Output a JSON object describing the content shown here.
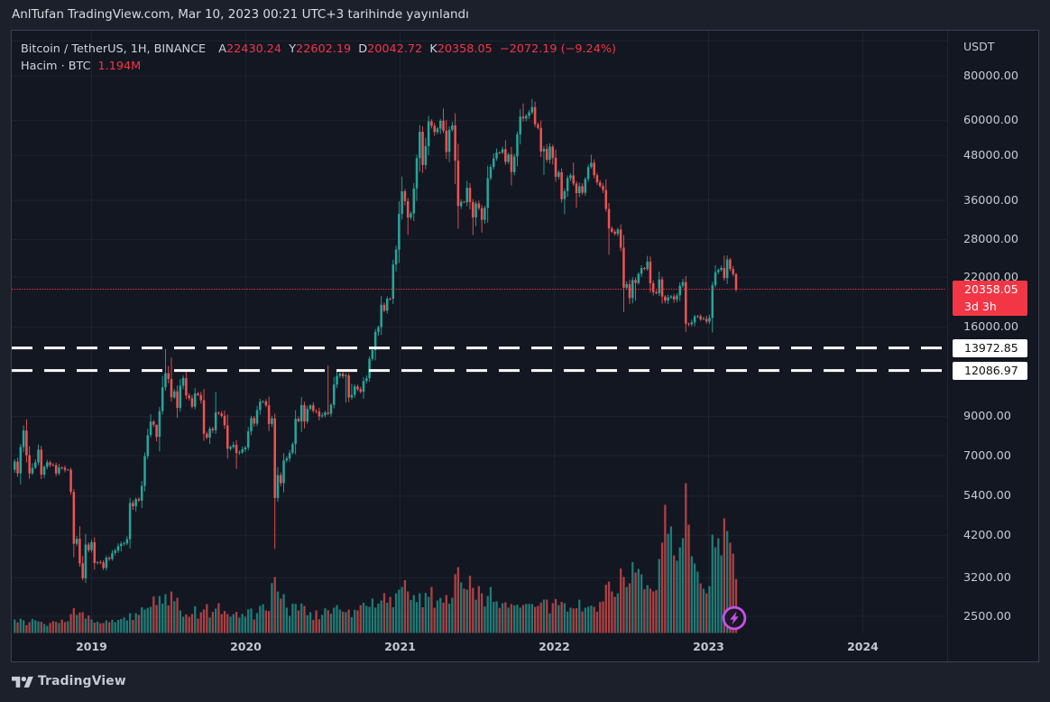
{
  "attribution": "AnlTufan TradingView.com, Mar 10, 2023 00:21 UTC+3 tarihinde yayınlandı",
  "legend": {
    "title": "Bitcoin / TetherUS, 1H, BINANCE",
    "ohlc": [
      {
        "label": "A",
        "value": "22430.24"
      },
      {
        "label": "Y",
        "value": "22602.19"
      },
      {
        "label": "D",
        "value": "20042.72"
      },
      {
        "label": "K",
        "value": "20358.05"
      }
    ],
    "change": "−2072.19 (−9.24%)",
    "volume_label": "Hacim · BTC",
    "volume_value": "1.194M"
  },
  "price_axis": {
    "currency": "USDT",
    "ticks": [
      {
        "label": "80000.00",
        "price": 80000
      },
      {
        "label": "60000.00",
        "price": 60000
      },
      {
        "label": "48000.00",
        "price": 48000
      },
      {
        "label": "36000.00",
        "price": 36000
      },
      {
        "label": "28000.00",
        "price": 28000
      },
      {
        "label": "22000.00",
        "price": 22000
      },
      {
        "label": "16000.00",
        "price": 16000
      },
      {
        "label": "9000.00",
        "price": 9000
      },
      {
        "label": "7000.00",
        "price": 7000
      },
      {
        "label": "5400.00",
        "price": 5400
      },
      {
        "label": "4200.00",
        "price": 4200
      },
      {
        "label": "3200.00",
        "price": 3200
      },
      {
        "label": "2500.00",
        "price": 2500
      }
    ],
    "price_label": {
      "value": "20358.05",
      "countdown": "3d 3h",
      "price": 20358.05
    },
    "level_labels": [
      {
        "label": "13972.85",
        "price": 13972.85
      },
      {
        "label": "12086.97",
        "price": 12086.97
      }
    ]
  },
  "time_axis": {
    "years": [
      "2019",
      "2020",
      "2021",
      "2022",
      "2023",
      "2024"
    ]
  },
  "footer": {
    "brand": "TradingView"
  },
  "colors": {
    "background": "#1c202b",
    "pane_background": "#131722",
    "grid": "rgba(240,243,250,0.055)",
    "up": "#26a69a",
    "down": "#ef5350",
    "volume_up": "rgba(38,166,154,0.7)",
    "volume_down": "rgba(239,83,80,0.7)",
    "price_line": "#f23645",
    "level_line": "#ffffff",
    "axis_text": "#bfc3ce",
    "legend_text": "#d1d4dc",
    "value_red": "#f23645",
    "badge": "#c94fe6"
  },
  "chart_data": {
    "type": "candlestick+volume",
    "symbol": "BTCUSDT",
    "interval": "1W",
    "start_week": "2018-07-02",
    "weeks": 245,
    "log_scale": true,
    "price_line": 20358.05,
    "levels": [
      13972.85,
      12086.97
    ],
    "grid_extra_price": 100000,
    "o": [
      6400,
      6740,
      6250,
      7400,
      8230,
      7020,
      6250,
      6480,
      6710,
      7280,
      6200,
      6520,
      6710,
      6600,
      6590,
      6250,
      6490,
      6480,
      6390,
      6400,
      5550,
      3980,
      4110,
      3510,
      3190,
      3960,
      3820,
      4020,
      3520,
      3540,
      3530,
      3410,
      3640,
      3610,
      3750,
      3810,
      3920,
      3980,
      3990,
      4100,
      5170,
      5060,
      5300,
      5250,
      5770,
      6980,
      7990,
      8720,
      8540,
      7900,
      9320,
      10850,
      11880,
      11450,
      10180,
      10580,
      9510,
      10970,
      11520,
      10300,
      10130,
      9590,
      10440,
      10330,
      9990,
      8060,
      7860,
      8320,
      8240,
      9230,
      9180,
      9040,
      8500,
      7320,
      7400,
      7510,
      7120,
      7150,
      7290,
      7380,
      8180,
      8910,
      8600,
      9380,
      9900,
      9920,
      9670,
      8580,
      8890,
      5340,
      6180,
      5870,
      6790,
      6880,
      7130,
      7540,
      8870,
      8720,
      9680,
      8720,
      9450,
      9670,
      9330,
      9300,
      9010,
      9070,
      9230,
      9160,
      9700,
      11050,
      11680,
      11850,
      11650,
      11710,
      10170,
      10340,
      10920,
      10720,
      10550,
      11300,
      11510,
      13030,
      13780,
      15480,
      15960,
      18420,
      17740,
      19170,
      19160,
      23850,
      26250,
      33000,
      38150,
      35800,
      32250,
      33100,
      38870,
      47200,
      55900,
      45140,
      50970,
      59770,
      58100,
      55780,
      57060,
      59990,
      56250,
      49080,
      56600,
      58250,
      46450,
      34700,
      35650,
      35540,
      39020,
      35600,
      32280,
      35290,
      34240,
      31780,
      34290,
      41490,
      44600,
      47100,
      48900,
      48830,
      49950,
      46060,
      48300,
      43160,
      47680,
      54960,
      61550,
      60850,
      61880,
      63290,
      65470,
      58620,
      57270,
      49250,
      50100,
      46700,
      50800,
      47300,
      41860,
      43100,
      36280,
      38180,
      41500,
      42240,
      40100,
      37710,
      39400,
      37790,
      41280,
      44540,
      45820,
      42280,
      40380,
      39450,
      38470,
      34060,
      30080,
      29430,
      29030,
      29860,
      26570,
      20550,
      21030,
      19240,
      21590,
      21190,
      22460,
      23310,
      23180,
      24310,
      21140,
      19970,
      19830,
      21680,
      19420,
      18920,
      19310,
      19440,
      19070,
      19570,
      20810,
      21300,
      16320,
      16270,
      16460,
      17100,
      17130,
      16780,
      16840,
      16540,
      16950,
      20880,
      22710,
      23030,
      23330,
      21860,
      24630,
      23180,
      22430.24
    ],
    "h": [
      6841,
      6916,
      7548,
      8500,
      8838,
      7437,
      6669,
      6841,
      7522,
      7458,
      6584,
      6822,
      6776,
      6677,
      6695,
      6643,
      6545,
      6576,
      6434,
      6480,
      5650,
      4184,
      4451,
      3682,
      4240,
      4018,
      4091,
      4147,
      3560,
      3581,
      3579,
      3691,
      3671,
      3827,
      3865,
      3989,
      4039,
      4038,
      4180,
      5345,
      5258,
      5354,
      5369,
      5951,
      7149,
      8326,
      9137,
      8799,
      8540,
      9578,
      11685,
      13880,
      12445,
      13130,
      10747,
      10977,
      11453,
      11724,
      12148,
      10448,
      10335,
      10804,
      10536,
      10538,
      10736,
      8161,
      8447,
      8426,
      10540,
      9293,
      9320,
      9349,
      9113,
      7468,
      7649,
      7739,
      7246,
      7424,
      7454,
      8412,
      9043,
      9033,
      9632,
      10085,
      9980,
      10053,
      10215,
      9048,
      9170,
      6514,
      6286,
      7119,
      6983,
      7266,
      7635,
      9368,
      9001,
      10191,
      9891,
      9642,
      9729,
      9857,
      9446,
      9518,
      9222,
      9336,
      12480,
      9812,
      11591,
      12031,
      11931,
      11959,
      11885,
      11886,
      11090,
      11080,
      11044,
      10890,
      11591,
      11723,
      13250,
      13937,
      15780,
      16122,
      19480,
      18699,
      19437,
      19297,
      24594,
      26931,
      35779,
      41950,
      38711,
      36599,
      33535,
      40245,
      48233,
      58350,
      57878,
      53774,
      61800,
      60541,
      59184,
      57720,
      60688,
      64900,
      60326,
      57869,
      59600,
      62918,
      51691,
      36246,
      35880,
      40768,
      40187,
      36307,
      35847,
      35952,
      34930,
      34764,
      44970,
      45379,
      48633,
      50201,
      49283,
      50788,
      52920,
      48809,
      50699,
      48528,
      55939,
      64629,
      66990,
      62562,
      64247,
      68990,
      67795,
      59345,
      60046,
      50953,
      51640,
      51961,
      51436,
      49832,
      43638,
      44227,
      38798,
      42247,
      42812,
      45850,
      40725,
      40344,
      40165,
      41799,
      45267,
      48240,
      46814,
      42912,
      41010,
      40196,
      41178,
      35379,
      30476,
      29811,
      30248,
      30864,
      28811,
      21410,
      21658,
      21997,
      21959,
      22726,
      23758,
      23485,
      25210,
      25135,
      21523,
      20249,
      22800,
      22043,
      19597,
      19656,
      19627,
      19736,
      19826,
      21259,
      21755,
      22156,
      16449,
      16755,
      17291,
      17279,
      17338,
      17076,
      17174,
      17294,
      21356,
      23732,
      23261,
      23702,
      25250,
      25300,
      24875,
      23617,
      22602.19
    ],
    "l": [
      6268,
      6114,
      5817,
      7156,
      6704,
      6037,
      6187,
      6425,
      6587,
      6023,
      6069,
      6416,
      6506,
      6535,
      6135,
      6171,
      6402,
      6289,
      6360,
      5450,
      3650,
      3923,
      3434,
      3150,
      3098,
      3769,
      3762,
      3372,
      3483,
      3491,
      3363,
      3353,
      3566,
      3568,
      3693,
      3752,
      3790,
      3929,
      3942,
      3864,
      4947,
      4897,
      5204,
      5005,
      5566,
      6853,
      7865,
      8406,
      7673,
      7195,
      9122,
      10622,
      11137,
      9903,
      10074,
      8916,
      9278,
      10727,
      10066,
      9969,
      9482,
      9418,
      10251,
      9781,
      7700,
      7788,
      7554,
      8094,
      8043,
      9089,
      8942,
      8314,
      6871,
      7228,
      7318,
      6430,
      7035,
      7088,
      7169,
      7244,
      7983,
      8431,
      8450,
      9103,
      9800,
      9556,
      8201,
      8410,
      3850,
      5206,
      5757,
      5535,
      6704,
      6732,
      7048,
      7059,
      8667,
      8157,
      8332,
      8599,
      9339,
      9208,
      9187,
      8777,
      8919,
      8956,
      9072,
      8989,
      9490,
      10800,
      11501,
      11481,
      9850,
      9874,
      10027,
      10153,
      10598,
      10439,
      10080,
      11120,
      11253,
      12850,
      12913,
      15118,
      15186,
      17585,
      17411,
      18947,
      18519,
      22805,
      24111,
      31820,
      34836,
      28850,
      31815,
      31533,
      35859,
      43237,
      42903,
      43945,
      48036,
      57138,
      54433,
      54995,
      55112,
      55341,
      46930,
      46009,
      55923,
      39942,
      30000,
      34047,
      35360,
      34651,
      33988,
      28800,
      30529,
      33842,
      29280,
      31006,
      31184,
      40969,
      43908,
      46397,
      48472,
      48459,
      45150,
      45487,
      39600,
      42262,
      44749,
      51578,
      59712,
      59747,
      60673,
      62500,
      57577,
      56678,
      47553,
      42330,
      45978,
      45566,
      45352,
      40584,
      41206,
      35500,
      32950,
      36805,
      40801,
      39487,
      34320,
      36726,
      37303,
      37064,
      40574,
      44078,
      41460,
      39768,
      39055,
      37733,
      33441,
      25400,
      29204,
      28715,
      28588,
      26007,
      17600,
      20282,
      18516,
      18596,
      18910,
      20962,
      22012,
      22977,
      22921,
      19902,
      19548,
      19696,
      19479,
      18566,
      18594,
      18520,
      19134,
      18674,
      18715,
      18890,
      20531,
      15480,
      16062,
      16065,
      16087,
      16943,
      16597,
      16694,
      16340,
      16271,
      15419,
      20572,
      22420,
      22808,
      21515,
      21058,
      22864,
      22151,
      20042.72
    ],
    "c": [
      6740,
      6250,
      7400,
      8230,
      7020,
      6250,
      6480,
      6710,
      7280,
      6200,
      6520,
      6710,
      6600,
      6590,
      6250,
      6490,
      6480,
      6390,
      6400,
      5550,
      3980,
      4110,
      3510,
      3190,
      3960,
      3820,
      4020,
      3520,
      3540,
      3530,
      3410,
      3640,
      3610,
      3750,
      3810,
      3920,
      3980,
      3990,
      4100,
      5170,
      5060,
      5300,
      5250,
      5770,
      6980,
      7990,
      8720,
      8540,
      7900,
      9320,
      10850,
      11880,
      11450,
      10180,
      10580,
      9510,
      10970,
      11520,
      10300,
      10130,
      9590,
      10440,
      10330,
      9990,
      8060,
      7860,
      8320,
      8240,
      9230,
      9180,
      9040,
      8500,
      7320,
      7400,
      7510,
      7120,
      7150,
      7290,
      7380,
      8180,
      8910,
      8600,
      9380,
      9900,
      9920,
      9670,
      8580,
      8890,
      5340,
      6180,
      5870,
      6790,
      6880,
      7130,
      7540,
      8870,
      8720,
      9680,
      8720,
      9450,
      9670,
      9330,
      9300,
      9010,
      9070,
      9230,
      9160,
      9700,
      11050,
      11680,
      11850,
      11650,
      11710,
      10170,
      10340,
      10920,
      10720,
      10550,
      11300,
      11510,
      13030,
      13780,
      15480,
      15960,
      18420,
      17740,
      19170,
      19160,
      23850,
      26250,
      33000,
      38150,
      35800,
      32250,
      33100,
      38870,
      47200,
      55900,
      45140,
      50970,
      59770,
      58100,
      55780,
      57060,
      59990,
      56250,
      49080,
      56600,
      58250,
      46450,
      34700,
      35650,
      35540,
      39020,
      35600,
      32280,
      35290,
      34240,
      31780,
      34290,
      41490,
      44600,
      47100,
      48900,
      48830,
      49950,
      46060,
      48300,
      43160,
      47680,
      54960,
      61550,
      60850,
      61880,
      63290,
      65470,
      58620,
      57270,
      49250,
      50100,
      46700,
      50800,
      47300,
      41860,
      43100,
      36280,
      38180,
      41500,
      42240,
      40100,
      37710,
      39400,
      37790,
      41280,
      44540,
      45820,
      42280,
      40380,
      39450,
      38470,
      34060,
      30080,
      29430,
      29030,
      29860,
      26570,
      20550,
      21030,
      19240,
      21590,
      21190,
      22460,
      23310,
      23180,
      24310,
      21140,
      19970,
      19830,
      21680,
      19420,
      18920,
      19310,
      19440,
      19070,
      19570,
      20810,
      21300,
      16320,
      16270,
      16460,
      17100,
      17130,
      16780,
      16840,
      16540,
      16950,
      20880,
      22710,
      23030,
      23330,
      21860,
      24630,
      23180,
      22430,
      20358.05
    ],
    "v": [
      0.3,
      0.235,
      0.316,
      0.279,
      0.175,
      0.24,
      0.313,
      0.281,
      0.256,
      0.248,
      0.2,
      0.156,
      0.221,
      0.261,
      0.246,
      0.22,
      0.296,
      0.242,
      0.26,
      0.42,
      0.55,
      0.4,
      0.452,
      0.46,
      0.32,
      0.388,
      0.3,
      0.231,
      0.251,
      0.216,
      0.22,
      0.279,
      0.241,
      0.292,
      0.24,
      0.289,
      0.309,
      0.344,
      0.28,
      0.44,
      0.289,
      0.437,
      0.4,
      0.571,
      0.52,
      0.556,
      0.58,
      0.809,
      0.62,
      0.818,
      0.653,
      0.86,
      0.612,
      0.92,
      0.705,
      0.779,
      0.5,
      0.359,
      0.415,
      0.357,
      0.42,
      0.595,
      0.319,
      0.46,
      0.52,
      0.64,
      0.344,
      0.468,
      0.54,
      0.661,
      0.42,
      0.488,
      0.421,
      0.36,
      0.418,
      0.469,
      0.34,
      0.424,
      0.36,
      0.524,
      0.543,
      0.301,
      0.44,
      0.6,
      0.636,
      0.5,
      0.488,
      1.106,
      1.24,
      0.92,
      0.76,
      0.859,
      0.56,
      0.377,
      0.648,
      0.644,
      0.5,
      0.655,
      0.597,
      0.394,
      0.46,
      0.288,
      0.503,
      0.304,
      0.4,
      0.546,
      0.503,
      0.428,
      0.56,
      0.617,
      0.52,
      0.472,
      0.46,
      0.518,
      0.35,
      0.515,
      0.5,
      0.616,
      0.67,
      0.6,
      0.58,
      0.762,
      0.564,
      0.653,
      0.72,
      0.884,
      0.669,
      0.8,
      0.57,
      0.88,
      0.96,
      1.02,
      1.169,
      0.92,
      0.732,
      0.84,
      0.684,
      0.88,
      0.569,
      0.888,
      0.8,
      1.023,
      0.557,
      0.72,
      0.776,
      0.669,
      0.84,
      0.65,
      0.78,
      1.305,
      1.46,
      1.12,
      0.982,
      0.96,
      1.268,
      1.0,
      0.738,
      1.038,
      0.88,
      0.587,
      0.82,
      1.02,
      0.69,
      0.7,
      0.556,
      0.661,
      0.68,
      0.563,
      0.64,
      0.612,
      0.627,
      0.562,
      0.62,
      0.644,
      0.644,
      0.64,
      0.576,
      0.6,
      0.674,
      0.74,
      0.739,
      0.434,
      0.66,
      0.752,
      0.62,
      0.689,
      0.66,
      0.475,
      0.56,
      0.542,
      0.55,
      0.738,
      0.477,
      0.56,
      0.583,
      0.606,
      0.58,
      0.469,
      0.684,
      0.7,
      1.068,
      1.14,
      0.92,
      0.799,
      0.88,
      1.427,
      1.24,
      1.02,
      1.1,
      1.571,
      1.34,
      1.42,
      1.3,
      0.968,
      1.06,
      0.985,
      0.92,
      0.953,
      1.64,
      2.0,
      2.84,
      2.2,
      2.36,
      1.72,
      1.6,
      1.9,
      2.1,
      3.32,
      2.4,
      1.7,
      1.54,
      1.36,
      1.1,
      0.98,
      0.88,
      1.04,
      2.18,
      1.9,
      2.1,
      1.72,
      2.54,
      2.26,
      2.0,
      1.76,
      1.194
    ]
  }
}
